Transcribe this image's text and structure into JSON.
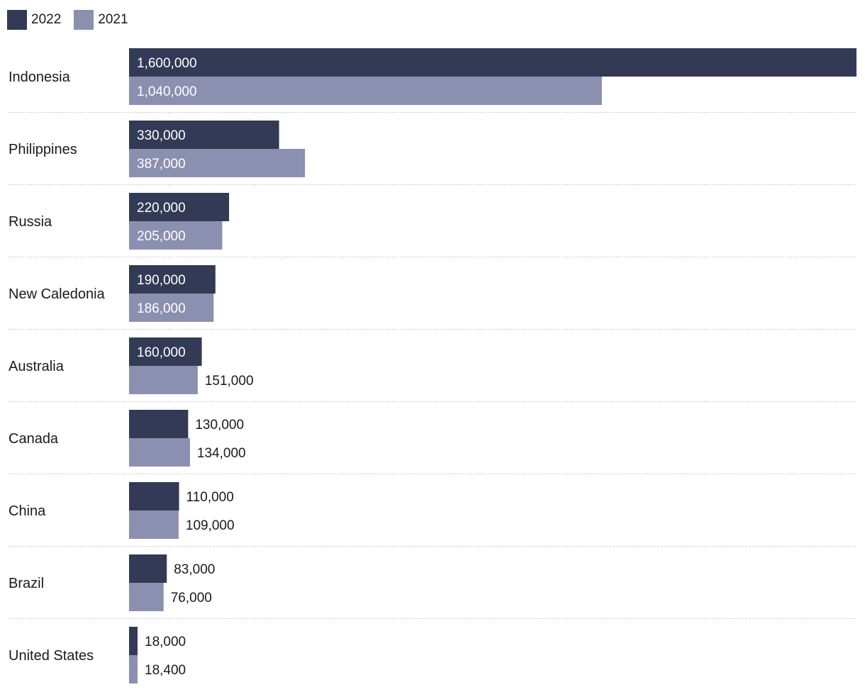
{
  "chart_data": {
    "type": "bar",
    "orientation": "horizontal",
    "title": "",
    "xlabel": "",
    "ylabel": "",
    "xlim": [
      0,
      1600000
    ],
    "grid": false,
    "legend_position": "top-left",
    "categories": [
      "Indonesia",
      "Philippines",
      "Russia",
      "New Caledonia",
      "Australia",
      "Canada",
      "China",
      "Brazil",
      "United States"
    ],
    "series": [
      {
        "name": "2022",
        "color": "#333a56",
        "values": [
          1600000,
          330000,
          220000,
          190000,
          160000,
          130000,
          110000,
          83000,
          18000
        ],
        "labels": [
          "1,600,000",
          "330,000",
          "220,000",
          "190,000",
          "160,000",
          "130,000",
          "110,000",
          "83,000",
          "18,000"
        ]
      },
      {
        "name": "2021",
        "color": "#8b90b1",
        "values": [
          1040000,
          387000,
          205000,
          186000,
          151000,
          134000,
          109000,
          76000,
          18400
        ],
        "labels": [
          "1,040,000",
          "387,000",
          "205,000",
          "186,000",
          "151,000",
          "134,000",
          "109,000",
          "76,000",
          "18,400"
        ]
      }
    ]
  }
}
